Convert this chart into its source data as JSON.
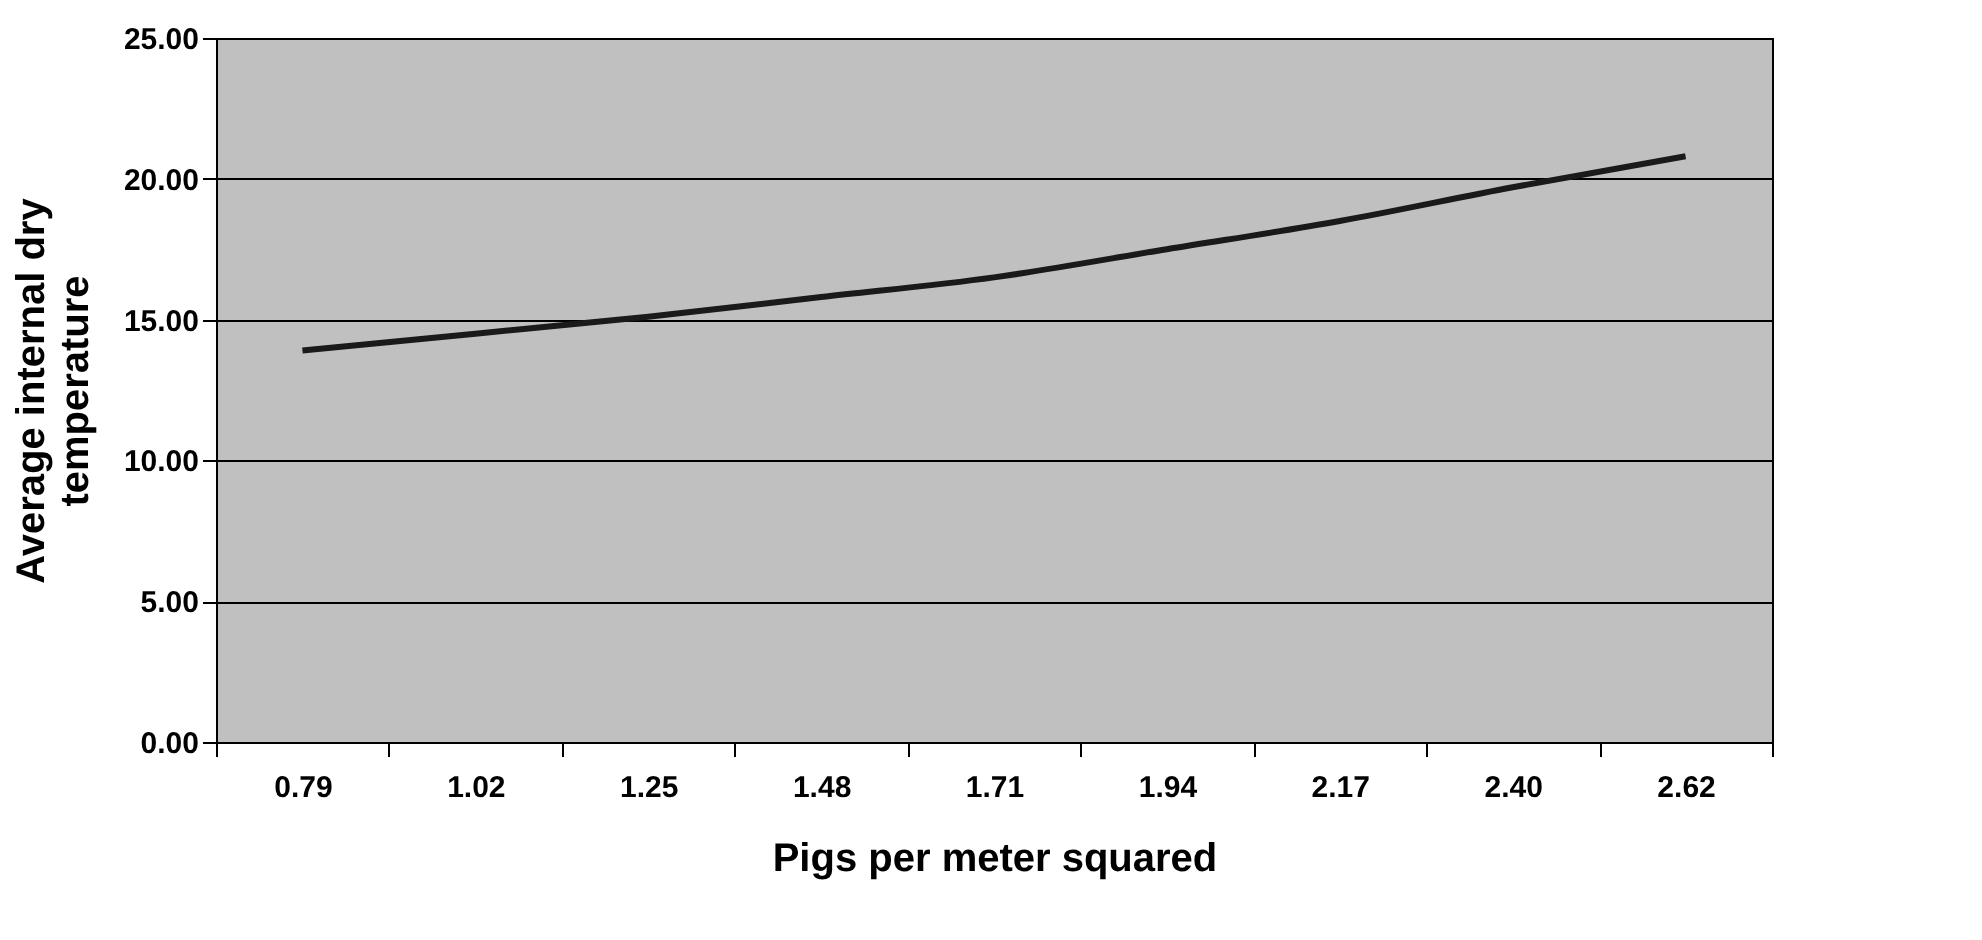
{
  "chart_data": {
    "type": "line",
    "xlabel": "Pigs per meter squared",
    "ylabel": "Average internal dry\ntemperature",
    "categories": [
      "0.79",
      "1.02",
      "1.25",
      "1.48",
      "1.71",
      "1.94",
      "2.17",
      "2.40",
      "2.62"
    ],
    "series": [
      {
        "color": "#1a1a1a",
        "values": [
          13.9,
          14.5,
          15.1,
          15.8,
          16.5,
          17.5,
          18.5,
          19.7,
          20.8
        ]
      }
    ],
    "ylim": [
      0,
      25
    ],
    "yticks": [
      {
        "value": 0,
        "label": "0.00"
      },
      {
        "value": 5,
        "label": "5.00"
      },
      {
        "value": 10,
        "label": "10.00"
      },
      {
        "value": 15,
        "label": "15.00"
      },
      {
        "value": 20,
        "label": "20.00"
      },
      {
        "value": 25,
        "label": "25.00"
      }
    ],
    "grid": "y",
    "legend": false,
    "marker": "none",
    "line_style": "solid"
  }
}
